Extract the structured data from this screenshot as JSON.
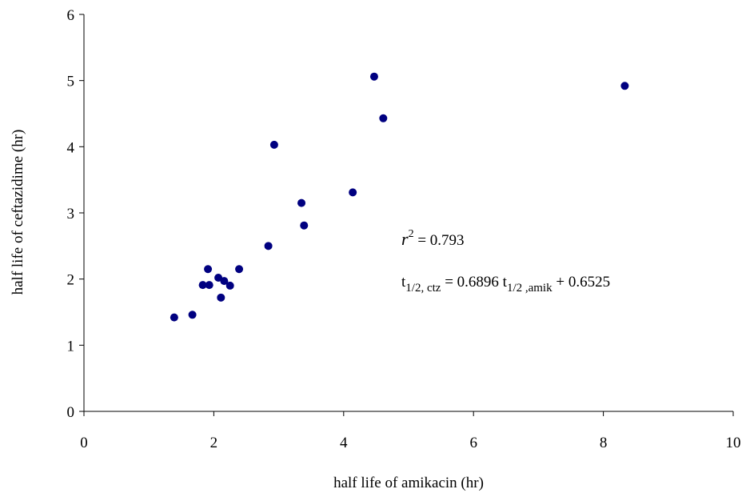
{
  "chart_data": {
    "type": "scatter",
    "x_label": "half life of amikacin (hr)",
    "y_label": "half life of ceftazidime (hr)",
    "series": [
      {
        "color": "#000080",
        "x": [
          1.39,
          1.67,
          1.83,
          1.91,
          1.93,
          2.07,
          2.11,
          2.16,
          2.25,
          2.39,
          2.84,
          2.93,
          3.35,
          3.39,
          4.14,
          4.47,
          4.61,
          8.33
        ],
        "values": [
          1.42,
          1.46,
          1.91,
          2.15,
          1.91,
          2.02,
          1.72,
          1.97,
          1.9,
          2.15,
          2.5,
          4.03,
          3.15,
          2.81,
          3.31,
          5.06,
          4.43,
          4.92
        ]
      }
    ],
    "xlim": [
      0,
      10
    ],
    "xticks": [
      0,
      2,
      4,
      6,
      8,
      10
    ],
    "ylim": [
      0,
      6
    ],
    "yticks": [
      0,
      1,
      2,
      3,
      4,
      5,
      6
    ],
    "grid": false,
    "annotations": {
      "r_squared": {
        "symbol": "r",
        "power": "2",
        "text": " = 0.793"
      },
      "equation": {
        "t1": "t",
        "sub1": "1/2, ctz",
        "mid": " = 0.6896 t",
        "sub2": "1/2 ,amik",
        "end": " + 0.6525"
      }
    }
  }
}
